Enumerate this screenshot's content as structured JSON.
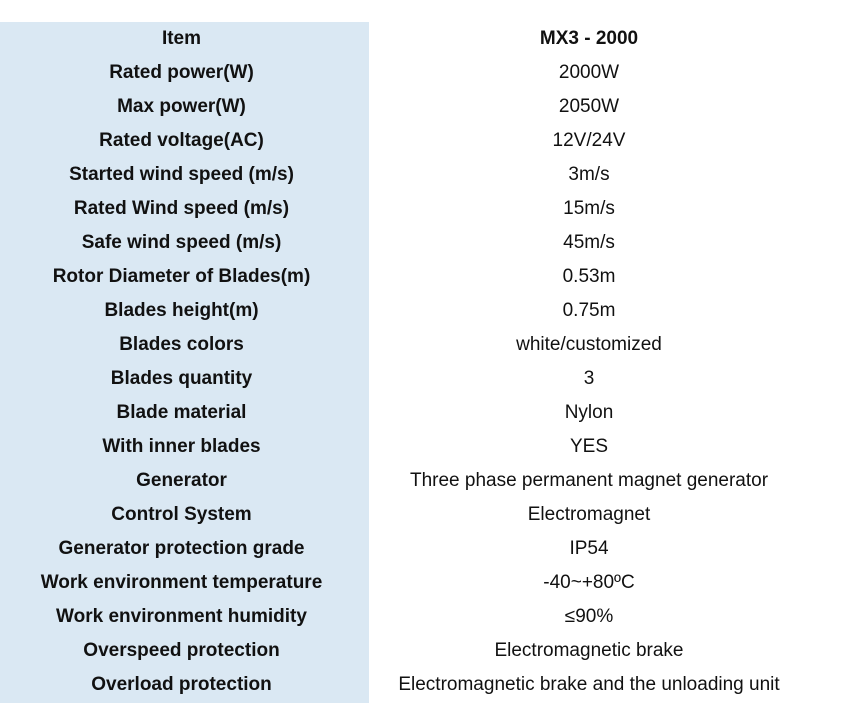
{
  "table": {
    "header": {
      "label": "Item",
      "value": "MX3 - 2000"
    },
    "rows": [
      {
        "label": "Rated power(W)",
        "value": "2000W"
      },
      {
        "label": "Max power(W)",
        "value": "2050W"
      },
      {
        "label": "Rated voltage(AC)",
        "value": "12V/24V"
      },
      {
        "label": "Started wind speed (m/s)",
        "value": "3m/s"
      },
      {
        "label": "Rated Wind speed (m/s)",
        "value": "15m/s"
      },
      {
        "label": "Safe wind speed (m/s)",
        "value": "45m/s"
      },
      {
        "label": "Rotor Diameter of Blades(m)",
        "value": "0.53m"
      },
      {
        "label": "Blades height(m)",
        "value": "0.75m"
      },
      {
        "label": "Blades colors",
        "value": "white/customized"
      },
      {
        "label": "Blades quantity",
        "value": "3"
      },
      {
        "label": "Blade material",
        "value": "Nylon"
      },
      {
        "label": "With inner blades",
        "value": "YES"
      },
      {
        "label": "Generator",
        "value": "Three phase permanent magnet generator"
      },
      {
        "label": "Control System",
        "value": "Electromagnet"
      },
      {
        "label": "Generator protection grade",
        "value": "IP54"
      },
      {
        "label": "Work environment temperature",
        "value": "-40~+80ºC"
      },
      {
        "label": "Work environment humidity",
        "value": "≤90%"
      },
      {
        "label": "Overspeed protection",
        "value": "Electromagnetic brake"
      },
      {
        "label": "Overload protection",
        "value": "Electromagnetic brake and the unloading unit"
      }
    ]
  },
  "colors": {
    "label_column_background": "#dae8f3",
    "text": "#111111"
  }
}
